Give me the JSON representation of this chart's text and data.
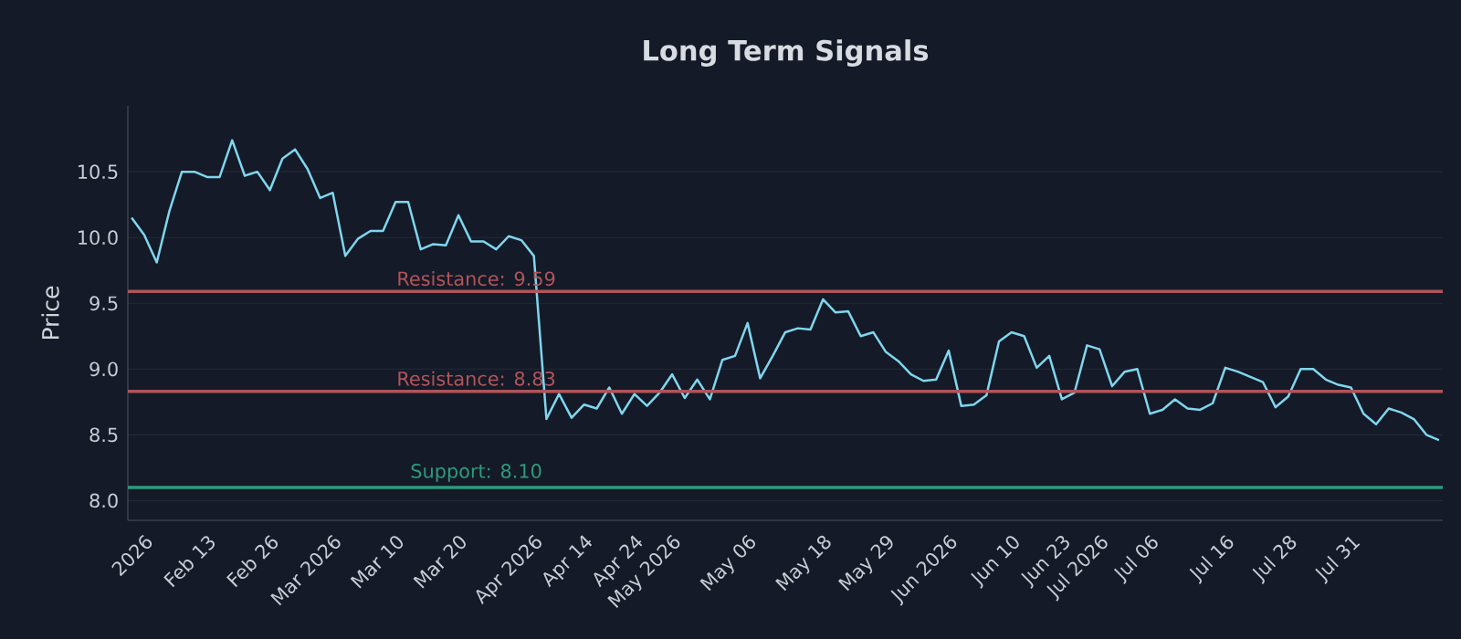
{
  "chart_data": {
    "type": "line",
    "title": "Long Term Signals",
    "ylabel": "Price",
    "categories": [
      null,
      "2026",
      null,
      null,
      null,
      null,
      "Feb 13",
      null,
      null,
      null,
      null,
      "Feb 26",
      null,
      null,
      null,
      null,
      "Mar 2026",
      null,
      null,
      null,
      null,
      "Mar 10",
      null,
      null,
      null,
      null,
      "Mar 20",
      null,
      null,
      null,
      null,
      null,
      "Apr 2026",
      null,
      null,
      null,
      "Apr 14",
      null,
      null,
      null,
      "Apr 24",
      null,
      null,
      "May 2026",
      null,
      null,
      null,
      null,
      null,
      "May 06",
      null,
      null,
      null,
      null,
      null,
      "May 18",
      null,
      null,
      null,
      null,
      "May 29",
      null,
      null,
      null,
      null,
      "Jun 2026",
      null,
      null,
      null,
      null,
      "Jun 10",
      null,
      null,
      null,
      "Jun 23",
      null,
      null,
      "Jul 2026",
      null,
      null,
      null,
      "Jul 06",
      null,
      null,
      null,
      null,
      null,
      "Jul 16",
      null,
      null,
      null,
      null,
      "Jul 28",
      null,
      null,
      null,
      null,
      "Jul 31",
      null,
      null,
      null,
      null,
      null,
      null,
      null
    ],
    "series": [
      {
        "color": "#7fd6ee",
        "line_style": "solid",
        "values": [
          10.15,
          10.02,
          9.81,
          10.2,
          10.5,
          10.5,
          10.46,
          10.46,
          10.74,
          10.47,
          10.5,
          10.36,
          10.6,
          10.67,
          10.52,
          10.3,
          10.34,
          9.86,
          9.99,
          10.05,
          10.05,
          10.27,
          10.27,
          9.91,
          9.95,
          9.94,
          10.17,
          9.97,
          9.97,
          9.91,
          10.01,
          9.98,
          9.86,
          8.62,
          8.81,
          8.63,
          8.73,
          8.7,
          8.86,
          8.66,
          8.81,
          8.72,
          8.82,
          8.96,
          8.78,
          8.92,
          8.77,
          9.07,
          9.1,
          9.35,
          8.93,
          9.1,
          9.28,
          9.31,
          9.3,
          9.53,
          9.43,
          9.44,
          9.25,
          9.28,
          9.13,
          9.06,
          8.96,
          8.91,
          8.92,
          9.14,
          8.72,
          8.73,
          8.8,
          9.21,
          9.28,
          9.25,
          9.01,
          9.1,
          8.77,
          8.82,
          9.18,
          9.15,
          8.87,
          8.98,
          9.0,
          8.66,
          8.69,
          8.77,
          8.7,
          8.69,
          8.74,
          9.01,
          8.98,
          8.94,
          8.9,
          8.71,
          8.79,
          9.0,
          9.0,
          8.92,
          8.88,
          8.86,
          8.66,
          8.58,
          8.7,
          8.67,
          8.62,
          8.5,
          8.46
        ]
      }
    ],
    "ylim": [
      7.85,
      11.0
    ],
    "yticks": [
      {
        "value": 8.0,
        "label": "8.0"
      },
      {
        "value": 8.5,
        "label": "8.5"
      },
      {
        "value": 9.0,
        "label": "9.0"
      },
      {
        "value": 9.5,
        "label": "9.5"
      },
      {
        "value": 10.0,
        "label": "10.0"
      },
      {
        "value": 10.5,
        "label": "10.5"
      }
    ],
    "grid": "y",
    "ref_lines": [
      {
        "axis": "y",
        "value": 9.59,
        "label": "Resistance: 9.59",
        "color": "#b0545a"
      },
      {
        "axis": "y",
        "value": 8.83,
        "label": "Resistance: 8.83",
        "color": "#b0545a"
      },
      {
        "axis": "y",
        "value": 8.1,
        "label": "Support: 8.10",
        "color": "#2e9a7c"
      }
    ]
  }
}
